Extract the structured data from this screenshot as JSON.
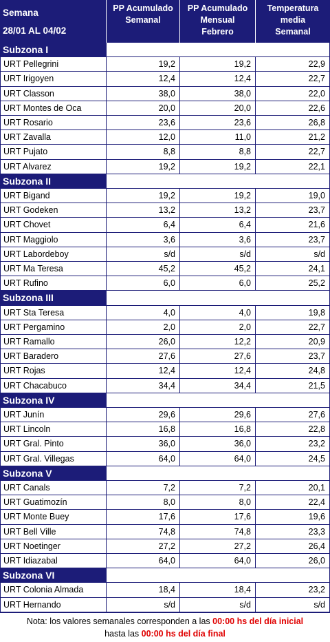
{
  "header": {
    "week_label": "Semana",
    "dates": "28/01 AL 04/02",
    "columns": [
      [
        "PP Acumulado",
        "Semanal"
      ],
      [
        "PP Acumulado",
        "Mensual",
        "Febrero"
      ],
      [
        "Temperatura",
        "media",
        "Semanal"
      ]
    ]
  },
  "subzones": [
    {
      "name": "Subzona I",
      "rows": [
        [
          "URT Pellegrini",
          "19,2",
          "19,2",
          "22,9"
        ],
        [
          "URT Irigoyen",
          "12,4",
          "12,4",
          "22,7"
        ],
        [
          "URT Classon",
          "38,0",
          "38,0",
          "22,0"
        ],
        [
          "URT Montes de Oca",
          "20,0",
          "20,0",
          "22,6"
        ],
        [
          "URT Rosario",
          "23,6",
          "23,6",
          "26,8"
        ],
        [
          "URT Zavalla",
          "12,0",
          "11,0",
          "21,2"
        ],
        [
          "URT Pujato",
          "8,8",
          "8,8",
          "22,7"
        ],
        [
          "URT Alvarez",
          "19,2",
          "19,2",
          "22,1"
        ]
      ]
    },
    {
      "name": "Subzona II",
      "rows": [
        [
          "URT Bigand",
          "19,2",
          "19,2",
          "19,0"
        ],
        [
          "URT Godeken",
          "13,2",
          "13,2",
          "23,7"
        ],
        [
          "URT Chovet",
          "6,4",
          "6,4",
          "21,6"
        ],
        [
          "URT Maggiolo",
          "3,6",
          "3,6",
          "23,7"
        ],
        [
          "URT Labordeboy",
          "s/d",
          "s/d",
          "s/d"
        ],
        [
          "URT Ma Teresa",
          "45,2",
          "45,2",
          "24,1"
        ],
        [
          "URT Rufino",
          "6,0",
          "6,0",
          "25,2"
        ]
      ]
    },
    {
      "name": "Subzona III",
      "rows": [
        [
          "URT Sta Teresa",
          "4,0",
          "4,0",
          "19,8"
        ],
        [
          "URT Pergamino",
          "2,0",
          "2,0",
          "22,7"
        ],
        [
          "URT Ramallo",
          "26,0",
          "12,2",
          "20,9"
        ],
        [
          "URT Baradero",
          "27,6",
          "27,6",
          "23,7"
        ],
        [
          "URT Rojas",
          "12,4",
          "12,4",
          "24,8"
        ],
        [
          "URT Chacabuco",
          "34,4",
          "34,4",
          "21,5"
        ]
      ]
    },
    {
      "name": "Subzona IV",
      "rows": [
        [
          "URT Junín",
          "29,6",
          "29,6",
          "27,6"
        ],
        [
          "URT Lincoln",
          "16,8",
          "16,8",
          "22,8"
        ],
        [
          "URT Gral. Pinto",
          "36,0",
          "36,0",
          "23,2"
        ],
        [
          "URT Gral. Villegas",
          "64,0",
          "64,0",
          "24,5"
        ]
      ]
    },
    {
      "name": "Subzona V",
      "rows": [
        [
          "URT Canals",
          "7,2",
          "7,2",
          "20,1"
        ],
        [
          "URT Guatimozín",
          "8,0",
          "8,0",
          "22,4"
        ],
        [
          "URT Monte Buey",
          "17,6",
          "17,6",
          "19,6"
        ],
        [
          "URT Bell Ville",
          "74,8",
          "74,8",
          "23,3"
        ],
        [
          "URT Noetinger",
          "27,2",
          "27,2",
          "26,4"
        ],
        [
          "URT Idiazabal",
          "64,0",
          "64,0",
          "26,0"
        ]
      ]
    },
    {
      "name": "Subzona VI",
      "rows": [
        [
          "URT Colonia Almada",
          "18,4",
          "18,4",
          "23,2"
        ],
        [
          "URT Hernando",
          "s/d",
          "s/d",
          "s/d"
        ]
      ]
    }
  ],
  "note": {
    "line1": "Nota: los valores semanales corresponden a las ",
    "time1": "00:00 hs del día inicial",
    "line2": "hasta las ",
    "time2": "00:00 hs del día final"
  }
}
